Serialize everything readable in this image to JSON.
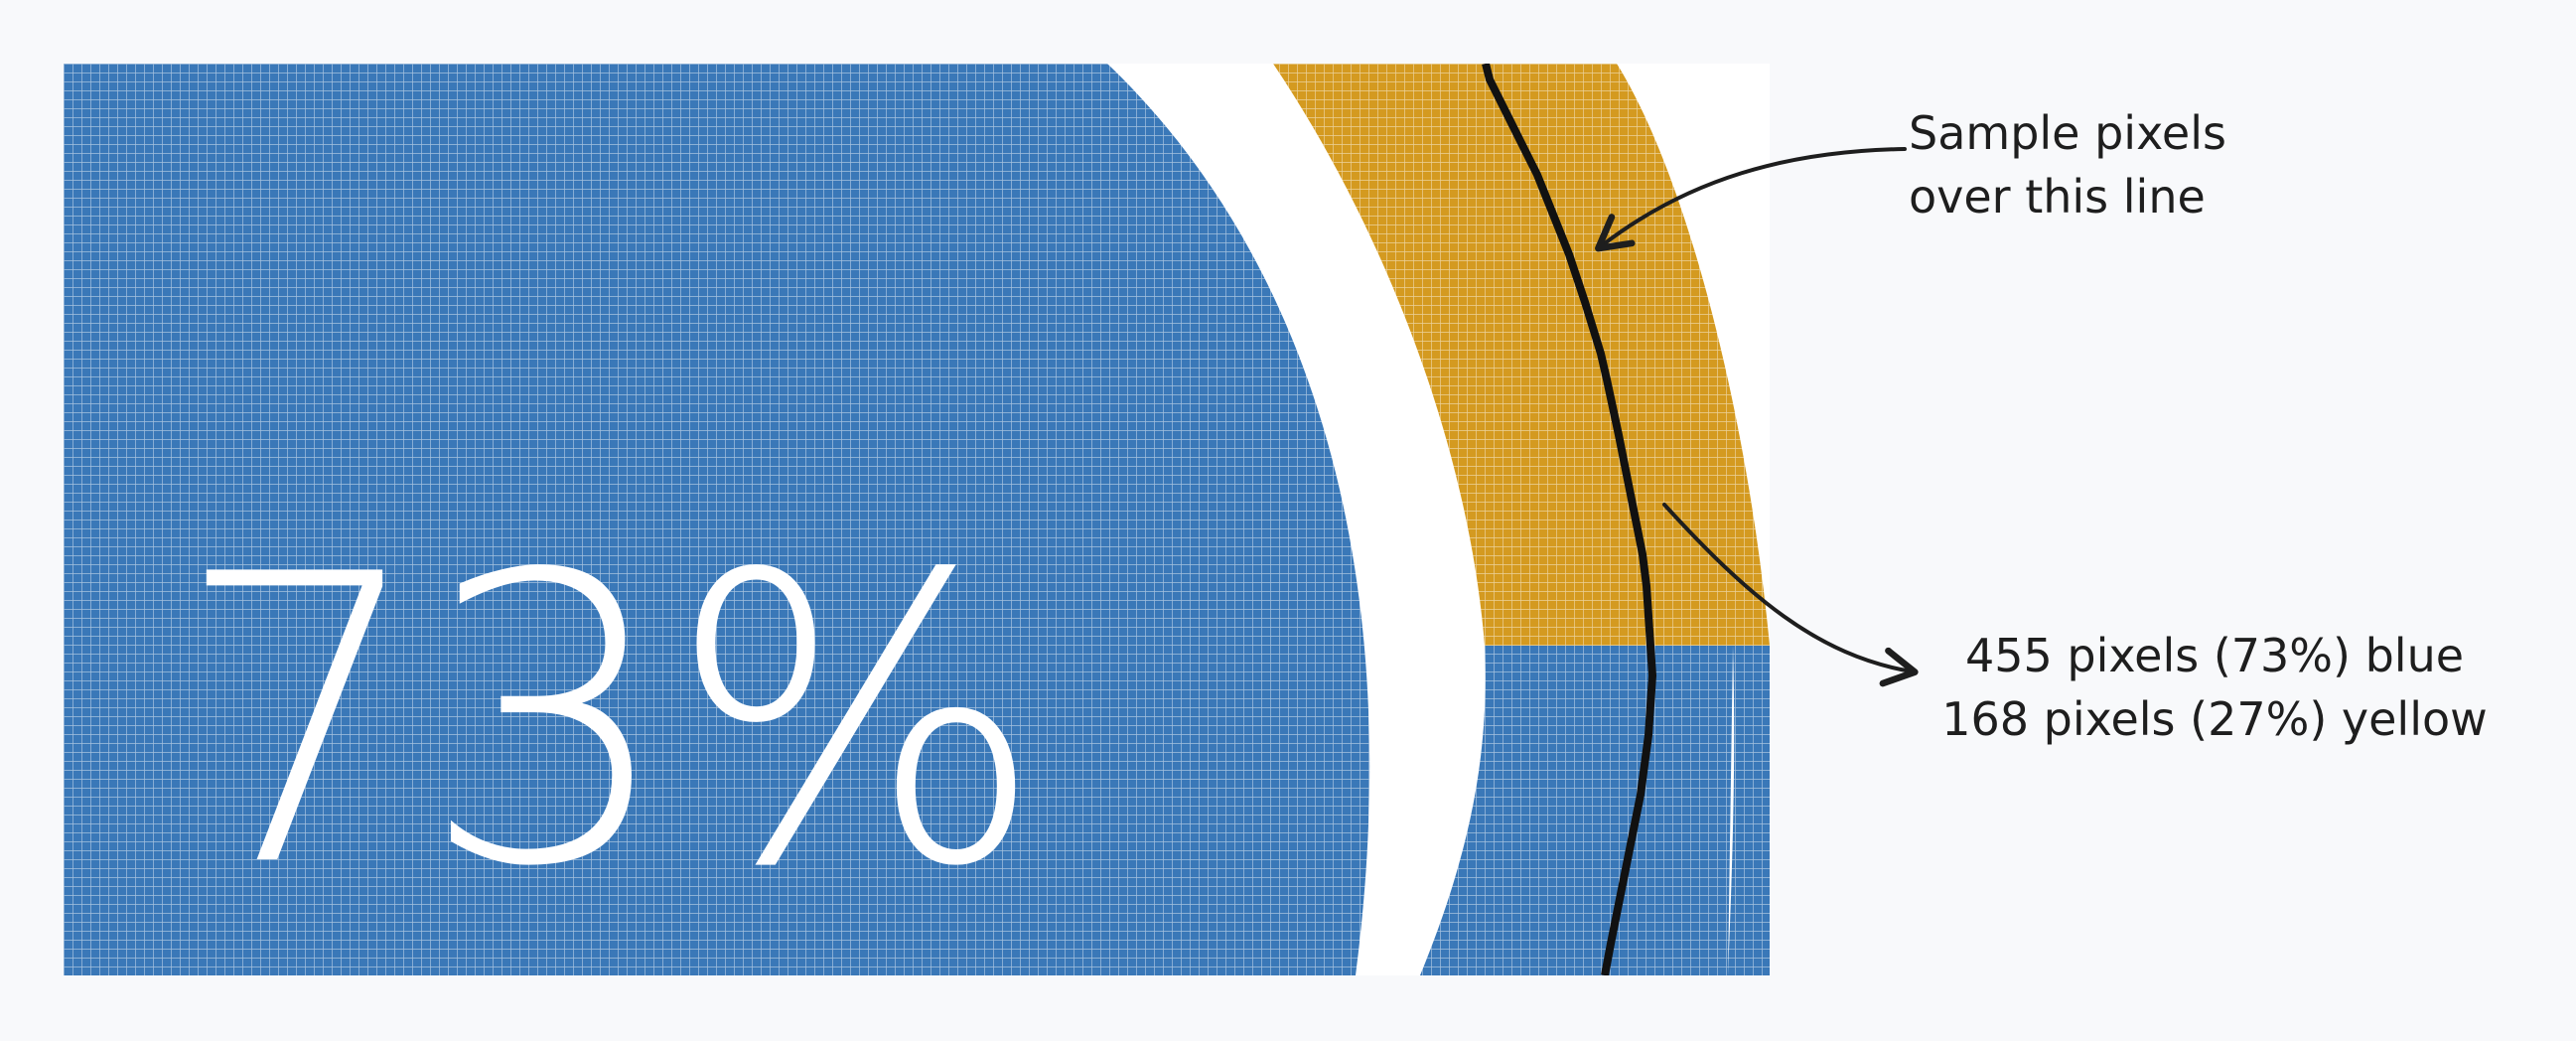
{
  "figure": {
    "big_percent": "73%",
    "callout_top": {
      "line1": "Sample pixels",
      "line2": "over this line"
    },
    "callout_bottom": {
      "line1": "455 pixels (73%) blue",
      "line2": "168 pixels (27%) yellow"
    },
    "colors": {
      "blue": "#3a78b8",
      "yellow": "#d49a20",
      "white": "#ffffff",
      "grid": "#d4dbe4",
      "ink": "#1e1e1e",
      "background": "#f8f9fb"
    }
  }
}
